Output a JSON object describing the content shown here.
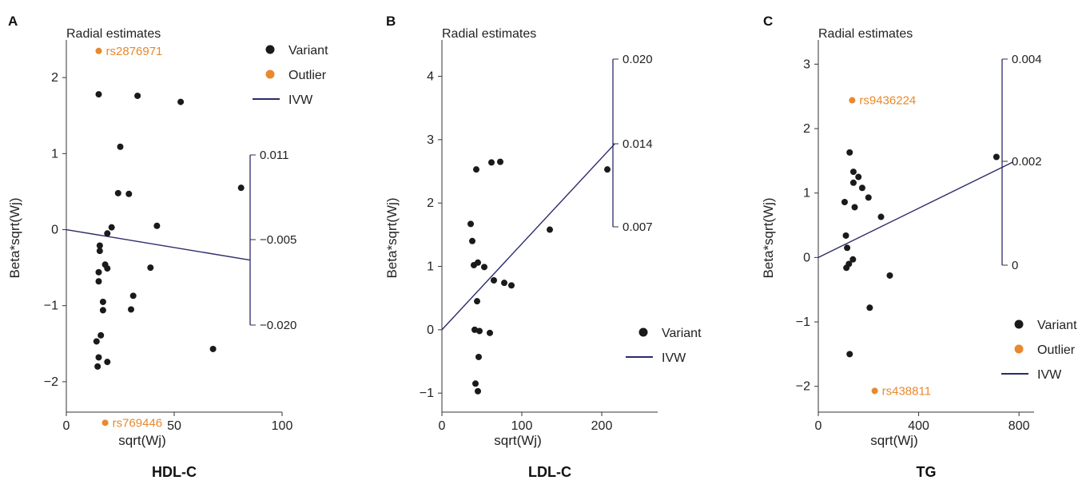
{
  "colors": {
    "variant": "#1a1a1a",
    "outlier": "#e8892d",
    "ivw": "#2b2a6b",
    "axis": "#333333"
  },
  "chart_data": [
    {
      "type": "scatter",
      "panel_letter": "A",
      "title": "Radial estimates",
      "panel_label": "HDL-C",
      "xlabel": "sqrt(Wj)",
      "ylabel": "Beta*sqrt(Wj)",
      "xlim": [
        0,
        100
      ],
      "ylim": [
        -2.4,
        2.6
      ],
      "xticks": [
        0,
        50,
        100
      ],
      "yticks": [
        -2,
        -1,
        0,
        1,
        2
      ],
      "legend_position": "top-right",
      "legend": [
        "Variant",
        "Outlier",
        "IVW"
      ],
      "variants": [
        [
          15.0,
          1.78
        ],
        [
          33.0,
          1.76
        ],
        [
          53.0,
          1.68
        ],
        [
          25.0,
          1.09
        ],
        [
          81.0,
          0.55
        ],
        [
          24.0,
          0.48
        ],
        [
          29.0,
          0.47
        ],
        [
          42.0,
          0.05
        ],
        [
          21.0,
          0.03
        ],
        [
          19.0,
          -0.05
        ],
        [
          15.5,
          -0.21
        ],
        [
          15.5,
          -0.28
        ],
        [
          18.0,
          -0.46
        ],
        [
          19.0,
          -0.51
        ],
        [
          39.0,
          -0.5
        ],
        [
          15.0,
          -0.56
        ],
        [
          15.0,
          -0.68
        ],
        [
          31.0,
          -0.87
        ],
        [
          17.0,
          -0.95
        ],
        [
          17.0,
          -1.06
        ],
        [
          30.0,
          -1.05
        ],
        [
          16.0,
          -1.39
        ],
        [
          14.0,
          -1.47
        ],
        [
          68.0,
          -1.57
        ],
        [
          15.0,
          -1.68
        ],
        [
          19.0,
          -1.74
        ],
        [
          14.5,
          -1.8
        ]
      ],
      "outliers": [
        {
          "x": 15,
          "y": 2.35,
          "label": "rs2876971"
        },
        {
          "x": 18,
          "y": -2.54,
          "label": "rs769446"
        }
      ],
      "ivw_line": {
        "x": [
          0,
          85
        ],
        "y": [
          0,
          -0.4
        ]
      },
      "radial_axis": {
        "ticks": [
          "0.011",
          "−0.005",
          "−0.020"
        ]
      }
    },
    {
      "type": "scatter",
      "panel_letter": "B",
      "title": "Radial estimates",
      "panel_label": "LDL-C",
      "xlabel": "sqrt(Wj)",
      "ylabel": "Beta*sqrt(Wj)",
      "xlim": [
        0,
        270
      ],
      "ylim": [
        -1.3,
        4.7
      ],
      "xticks": [
        0,
        100,
        200
      ],
      "yticks": [
        -1,
        0,
        1,
        2,
        3,
        4
      ],
      "legend_position": "bottom-right",
      "legend": [
        "Variant",
        "IVW"
      ],
      "variants": [
        [
          62,
          2.64
        ],
        [
          73,
          2.65
        ],
        [
          43,
          2.53
        ],
        [
          207,
          2.53
        ],
        [
          36,
          1.67
        ],
        [
          135,
          1.58
        ],
        [
          38,
          1.4
        ],
        [
          45,
          1.06
        ],
        [
          40,
          1.02
        ],
        [
          53,
          0.99
        ],
        [
          65,
          0.78
        ],
        [
          78,
          0.74
        ],
        [
          87,
          0.7
        ],
        [
          44,
          0.45
        ],
        [
          41,
          0.0
        ],
        [
          47,
          -0.02
        ],
        [
          60,
          -0.05
        ],
        [
          46,
          -0.43
        ],
        [
          42,
          -0.85
        ],
        [
          45,
          -0.97
        ]
      ],
      "outliers": [],
      "ivw_line": {
        "x": [
          0,
          216
        ],
        "y": [
          0,
          2.93
        ]
      },
      "radial_axis": {
        "ticks": [
          "0.020",
          "0.014",
          "0.007"
        ]
      }
    },
    {
      "type": "scatter",
      "panel_letter": "C",
      "title": "Radial estimates",
      "panel_label": "TG",
      "xlabel": "sqrt(Wj)",
      "ylabel": "Beta*sqrt(Wj)",
      "xlim": [
        0,
        860
      ],
      "ylim": [
        -2.4,
        3.5
      ],
      "xticks": [
        0,
        400,
        800
      ],
      "yticks": [
        -2,
        -1,
        0,
        1,
        2,
        3
      ],
      "legend_position": "bottom-right",
      "legend": [
        "Variant",
        "Outlier",
        "IVW"
      ],
      "variants": [
        [
          125,
          1.63
        ],
        [
          140,
          1.33
        ],
        [
          160,
          1.25
        ],
        [
          140,
          1.16
        ],
        [
          175,
          1.08
        ],
        [
          200,
          0.93
        ],
        [
          105,
          0.86
        ],
        [
          145,
          0.78
        ],
        [
          250,
          0.63
        ],
        [
          710,
          1.56
        ],
        [
          110,
          0.34
        ],
        [
          115,
          0.15
        ],
        [
          138,
          -0.03
        ],
        [
          122,
          -0.1
        ],
        [
          112,
          -0.16
        ],
        [
          285,
          -0.28
        ],
        [
          205,
          -0.78
        ],
        [
          125,
          -1.5
        ]
      ],
      "outliers": [
        {
          "x": 135,
          "y": 2.44,
          "label": "rs9436224"
        },
        {
          "x": 225,
          "y": -2.07,
          "label": "rs438811"
        }
      ],
      "ivw_line": {
        "x": [
          0,
          775
        ],
        "y": [
          0,
          1.48
        ]
      },
      "radial_axis": {
        "ticks": [
          "0.004",
          "0.002",
          "0"
        ]
      }
    }
  ]
}
